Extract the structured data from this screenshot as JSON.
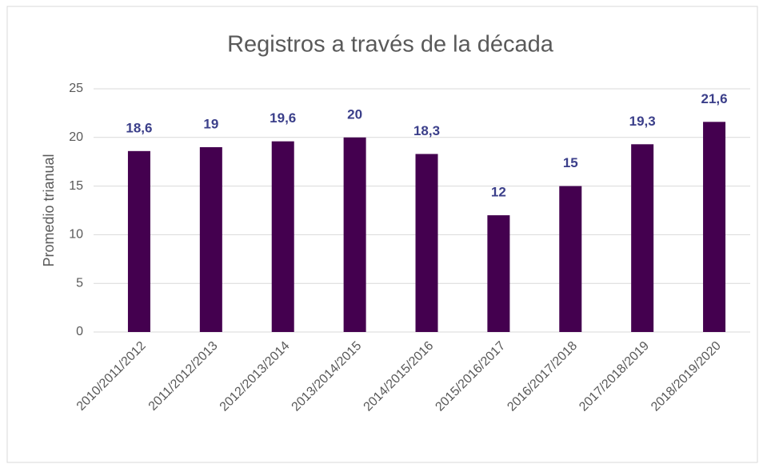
{
  "chart_data": {
    "type": "bar",
    "title": "Registros a través de la década",
    "y_label": "Promedio trianual",
    "categories": [
      "2010/2011/2012",
      "2011/2012/2013",
      "2012/2013/2014",
      "2013/2014/2015",
      "2014/2015/2016",
      "2015/2016/2017",
      "2016/2017/2018",
      "2017/2018/2019",
      "2018/2019/2020"
    ],
    "values": [
      18.6,
      19,
      19.6,
      20,
      18.3,
      12,
      15,
      19.3,
      21.6
    ],
    "value_labels": [
      "18,6",
      "19",
      "19,6",
      "20",
      "18,3",
      "12",
      "15",
      "19,3",
      "21,6"
    ],
    "color": "#44004f",
    "ylim": [
      0,
      25
    ],
    "yticks": [
      0,
      5,
      10,
      15,
      20,
      25
    ],
    "grid": true
  }
}
